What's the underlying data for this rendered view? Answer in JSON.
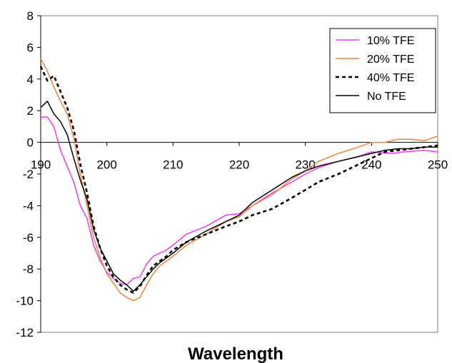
{
  "chart_data": {
    "type": "line",
    "title": "",
    "xlabel": "Wavelength",
    "ylabel": "",
    "xlim": [
      190,
      250
    ],
    "ylim": [
      -12,
      8
    ],
    "x_ticks": [
      190,
      200,
      210,
      220,
      230,
      240,
      250
    ],
    "y_ticks": [
      8,
      6,
      4,
      2,
      0,
      -2,
      -4,
      -6,
      -8,
      -10,
      -12
    ],
    "grid": false,
    "legend_position": "top-right",
    "series": [
      {
        "name": "10% TFE",
        "color": "#ff33ff",
        "dash": "solid",
        "points": [
          [
            190,
            1.6
          ],
          [
            191,
            1.6
          ],
          [
            192,
            1.0
          ],
          [
            193,
            -0.5
          ],
          [
            194,
            -1.5
          ],
          [
            195,
            -2.5
          ],
          [
            196,
            -4.0
          ],
          [
            197,
            -4.8
          ],
          [
            198,
            -6.5
          ],
          [
            199,
            -7.5
          ],
          [
            200,
            -8.2
          ],
          [
            201,
            -8.6
          ],
          [
            202,
            -8.9
          ],
          [
            203,
            -9.0
          ],
          [
            204,
            -8.6
          ],
          [
            205,
            -8.5
          ],
          [
            206,
            -7.7
          ],
          [
            207,
            -7.2
          ],
          [
            208,
            -7.0
          ],
          [
            209,
            -6.8
          ],
          [
            210,
            -6.5
          ],
          [
            212,
            -5.8
          ],
          [
            215,
            -5.3
          ],
          [
            218,
            -4.6
          ],
          [
            220,
            -4.5
          ],
          [
            222,
            -4.0
          ],
          [
            225,
            -3.2
          ],
          [
            228,
            -2.5
          ],
          [
            230,
            -2.0
          ],
          [
            232,
            -1.6
          ],
          [
            235,
            -1.2
          ],
          [
            238,
            -0.9
          ],
          [
            240,
            -0.6
          ],
          [
            243,
            -0.7
          ],
          [
            245,
            -0.6
          ],
          [
            248,
            -0.5
          ],
          [
            250,
            -0.6
          ]
        ]
      },
      {
        "name": "20% TFE",
        "color": "#ff8033",
        "dash": "solid",
        "points": [
          [
            190,
            5.3
          ],
          [
            191,
            4.5
          ],
          [
            192,
            3.5
          ],
          [
            193,
            2.6
          ],
          [
            194,
            1.8
          ],
          [
            195,
            0.3
          ],
          [
            196,
            -2.0
          ],
          [
            197,
            -4.0
          ],
          [
            198,
            -6.0
          ],
          [
            199,
            -7.3
          ],
          [
            200,
            -8.3
          ],
          [
            201,
            -8.9
          ],
          [
            202,
            -9.5
          ],
          [
            203,
            -9.8
          ],
          [
            204,
            -10.0
          ],
          [
            205,
            -9.8
          ],
          [
            206,
            -9.0
          ],
          [
            207,
            -8.3
          ],
          [
            208,
            -7.8
          ],
          [
            209,
            -7.5
          ],
          [
            210,
            -7.2
          ],
          [
            212,
            -6.5
          ],
          [
            215,
            -5.8
          ],
          [
            218,
            -5.0
          ],
          [
            220,
            -4.7
          ],
          [
            222,
            -4.0
          ],
          [
            225,
            -3.3
          ],
          [
            228,
            -2.3
          ],
          [
            230,
            -1.8
          ],
          [
            232,
            -1.2
          ],
          [
            235,
            -0.7
          ],
          [
            238,
            -0.3
          ],
          [
            240,
            0.0
          ],
          [
            242,
            0.0
          ],
          [
            244,
            0.2
          ],
          [
            246,
            0.2
          ],
          [
            248,
            0.1
          ],
          [
            250,
            0.4
          ]
        ]
      },
      {
        "name": "40% TFE",
        "color": "#000000",
        "dash": "dashed",
        "points": [
          [
            190,
            4.8
          ],
          [
            191,
            3.9
          ],
          [
            192,
            4.2
          ],
          [
            193,
            3.2
          ],
          [
            194,
            2.2
          ],
          [
            195,
            0.8
          ],
          [
            196,
            -1.4
          ],
          [
            197,
            -3.2
          ],
          [
            198,
            -5.3
          ],
          [
            199,
            -6.7
          ],
          [
            200,
            -7.8
          ],
          [
            201,
            -8.5
          ],
          [
            202,
            -9.0
          ],
          [
            203,
            -9.3
          ],
          [
            204,
            -9.5
          ],
          [
            205,
            -9.1
          ],
          [
            206,
            -8.4
          ],
          [
            207,
            -7.8
          ],
          [
            208,
            -7.5
          ],
          [
            209,
            -7.2
          ],
          [
            210,
            -6.8
          ],
          [
            212,
            -6.3
          ],
          [
            215,
            -5.8
          ],
          [
            218,
            -5.3
          ],
          [
            220,
            -5.0
          ],
          [
            222,
            -4.6
          ],
          [
            225,
            -4.2
          ],
          [
            228,
            -3.5
          ],
          [
            230,
            -3.0
          ],
          [
            232,
            -2.5
          ],
          [
            235,
            -2.0
          ],
          [
            238,
            -1.4
          ],
          [
            240,
            -1.0
          ],
          [
            242,
            -0.6
          ],
          [
            244,
            -0.5
          ],
          [
            246,
            -0.4
          ],
          [
            248,
            -0.3
          ],
          [
            250,
            -0.2
          ]
        ]
      },
      {
        "name": "No TFE",
        "color": "#000000",
        "dash": "solid",
        "points": [
          [
            190,
            2.2
          ],
          [
            191,
            2.6
          ],
          [
            192,
            1.8
          ],
          [
            193,
            1.3
          ],
          [
            194,
            0.5
          ],
          [
            195,
            -1.0
          ],
          [
            196,
            -2.4
          ],
          [
            197,
            -3.6
          ],
          [
            198,
            -5.5
          ],
          [
            199,
            -6.7
          ],
          [
            200,
            -7.5
          ],
          [
            201,
            -8.3
          ],
          [
            202,
            -8.7
          ],
          [
            203,
            -9.0
          ],
          [
            204,
            -9.4
          ],
          [
            205,
            -9.0
          ],
          [
            206,
            -8.5
          ],
          [
            207,
            -8.0
          ],
          [
            208,
            -7.6
          ],
          [
            209,
            -7.3
          ],
          [
            210,
            -7.0
          ],
          [
            212,
            -6.3
          ],
          [
            215,
            -5.6
          ],
          [
            218,
            -5.0
          ],
          [
            220,
            -4.6
          ],
          [
            222,
            -3.8
          ],
          [
            225,
            -3.0
          ],
          [
            228,
            -2.2
          ],
          [
            230,
            -1.8
          ],
          [
            232,
            -1.5
          ],
          [
            235,
            -1.2
          ],
          [
            238,
            -0.9
          ],
          [
            240,
            -0.7
          ],
          [
            242,
            -0.5
          ],
          [
            244,
            -0.4
          ],
          [
            246,
            -0.4
          ],
          [
            248,
            -0.3
          ],
          [
            250,
            -0.3
          ]
        ]
      }
    ]
  }
}
